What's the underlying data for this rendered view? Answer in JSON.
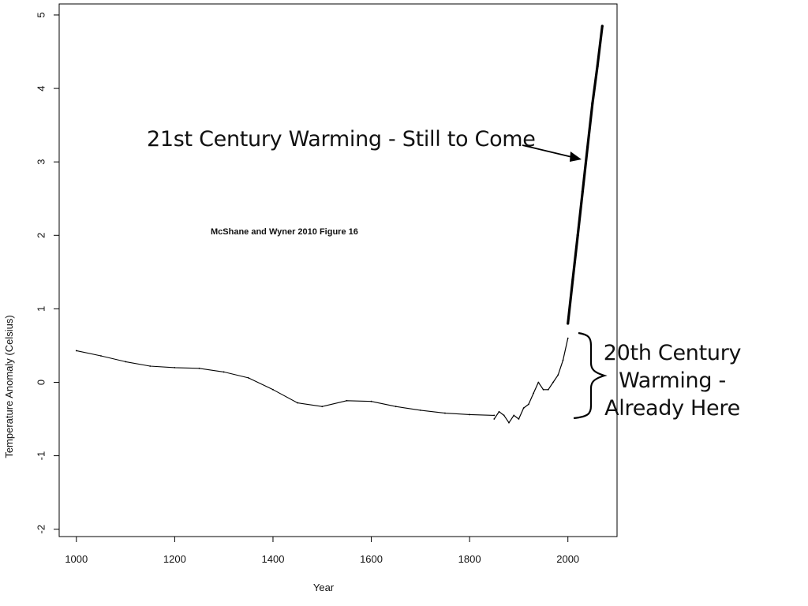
{
  "chart_data": {
    "type": "line",
    "title": "",
    "xlabel": "Year",
    "ylabel": "Temperature Anomaly (Celsius)",
    "xlim": [
      965,
      2100
    ],
    "ylim": [
      -2.1,
      5.15
    ],
    "x_ticks": [
      1000,
      1200,
      1400,
      1600,
      1800,
      2000
    ],
    "y_ticks": [
      -2,
      -1,
      0,
      1,
      2,
      3,
      4,
      5
    ],
    "grid": false,
    "series": [
      {
        "role": "smoothed reconstruction",
        "x": [
          1000,
          1050,
          1100,
          1150,
          1200,
          1250,
          1300,
          1350,
          1400,
          1450,
          1500,
          1550,
          1600,
          1650,
          1700,
          1750,
          1800,
          1850
        ],
        "y": [
          0.43,
          0.36,
          0.28,
          0.22,
          0.2,
          0.19,
          0.14,
          0.06,
          -0.1,
          -0.28,
          -0.33,
          -0.25,
          -0.26,
          -0.33,
          -0.38,
          -0.42,
          -0.44,
          -0.45
        ]
      },
      {
        "role": "instrumental record",
        "x": [
          1850,
          1860,
          1870,
          1880,
          1890,
          1900,
          1910,
          1920,
          1930,
          1940,
          1950,
          1960,
          1970,
          1980,
          1990,
          2000
        ],
        "y": [
          -0.5,
          -0.4,
          -0.45,
          -0.55,
          -0.45,
          -0.5,
          -0.35,
          -0.3,
          -0.15,
          0.0,
          -0.1,
          -0.1,
          0.0,
          0.1,
          0.3,
          0.6
        ]
      },
      {
        "role": "21st century projection",
        "x": [
          2000,
          2010,
          2020,
          2030,
          2040,
          2050,
          2060,
          2070
        ],
        "y": [
          0.8,
          1.4,
          2.0,
          2.6,
          3.2,
          3.8,
          4.3,
          4.85
        ]
      }
    ],
    "annotations": {
      "figure_label": "McShane and Wyner 2010 Figure 16",
      "future_warming": "21st Century Warming - Still to Come",
      "past_warming_lines": [
        "20th Century",
        "Warming -",
        "Already Here"
      ]
    }
  }
}
